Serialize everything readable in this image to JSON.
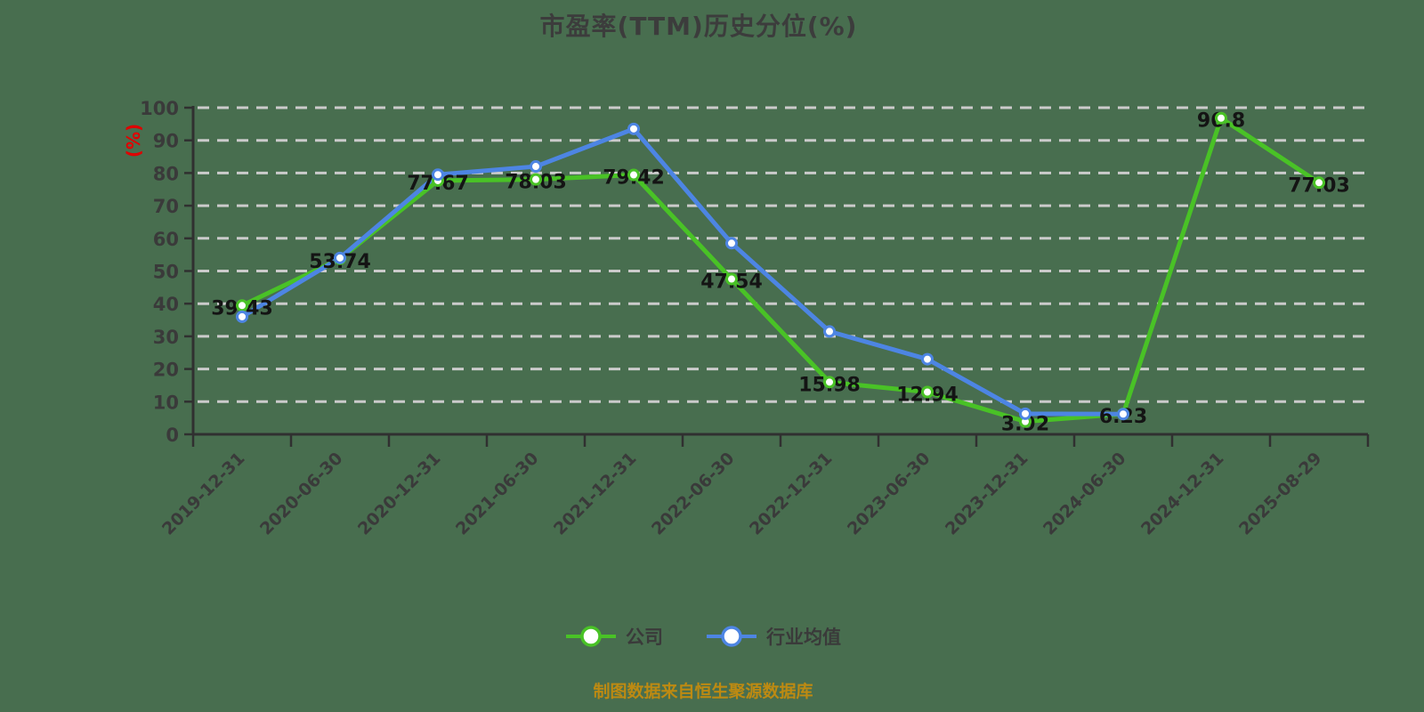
{
  "caption": "制图数据来自恒生聚源数据库",
  "colors": {
    "background": "#486e4f",
    "axis": "#303030",
    "grid": "#cbcbcb",
    "tick_label": "#3a3a3a",
    "data_label": "#141414",
    "title": "#3c3c3c",
    "series_company": "#49c226",
    "series_industry": "#4d85e3",
    "ylabel_red": "#e00000",
    "caption_orange": "#bd8a12",
    "marker_fill": "#ffffff"
  },
  "chart_data": {
    "type": "line",
    "title": "市盈率(TTM)历史分位(%)",
    "ylabel": "(%)",
    "categories": [
      "2019-12-31",
      "2020-06-30",
      "2020-12-31",
      "2021-06-30",
      "2021-12-31",
      "2022-06-30",
      "2022-12-31",
      "2023-06-30",
      "2023-12-31",
      "2024-06-30",
      "2024-12-31",
      "2025-08-29"
    ],
    "series": [
      {
        "name": "公司",
        "color": "#49c226",
        "values": [
          39.43,
          53.74,
          77.67,
          78.03,
          79.42,
          47.54,
          15.98,
          12.94,
          3.92,
          6.23,
          96.8,
          77.03
        ],
        "point_labels": true
      },
      {
        "name": "行业均值",
        "color": "#4d85e3",
        "values": [
          36,
          54,
          79.5,
          82,
          93.5,
          58.5,
          31.5,
          23,
          6.3,
          6.2
        ],
        "point_labels": false,
        "values_estimated": true
      }
    ],
    "ylim": [
      0,
      100
    ],
    "ytick_step": 10,
    "grid": {
      "horizontal": true,
      "style": "dashed",
      "color": "#cbcbcb"
    },
    "legend_position": "bottom",
    "marker": "hollow-circle",
    "x_tick_rotation": -45
  }
}
